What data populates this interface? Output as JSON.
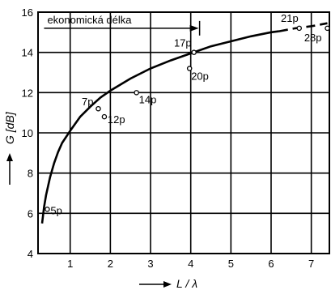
{
  "chart_data": {
    "type": "line",
    "xlabel": "L / λ",
    "ylabel": "G [dB]",
    "xlim": [
      0.2,
      7.45
    ],
    "ylim": [
      4,
      16
    ],
    "x_ticks": [
      1,
      2,
      3,
      4,
      5,
      6,
      7
    ],
    "y_ticks": [
      4,
      6,
      8,
      10,
      12,
      14,
      16
    ],
    "grid": true,
    "series": [
      {
        "style": "solid",
        "points": [
          [
            0.3,
            5.5
          ],
          [
            0.35,
            6.3
          ],
          [
            0.4,
            6.9
          ],
          [
            0.5,
            7.8
          ],
          [
            0.6,
            8.5
          ],
          [
            0.7,
            9.05
          ],
          [
            0.8,
            9.5
          ],
          [
            1.0,
            10.1
          ],
          [
            1.25,
            10.8
          ],
          [
            1.5,
            11.3
          ],
          [
            1.75,
            11.75
          ],
          [
            2.0,
            12.1
          ],
          [
            2.5,
            12.7
          ],
          [
            3.0,
            13.2
          ],
          [
            3.5,
            13.6
          ],
          [
            4.0,
            13.95
          ],
          [
            4.5,
            14.3
          ],
          [
            5.0,
            14.55
          ],
          [
            5.5,
            14.8
          ],
          [
            6.0,
            15.0
          ],
          [
            6.2,
            15.05
          ]
        ]
      },
      {
        "style": "dashed",
        "points": [
          [
            6.2,
            15.05
          ],
          [
            6.6,
            15.2
          ],
          [
            7.0,
            15.3
          ],
          [
            7.4,
            15.45
          ]
        ]
      }
    ],
    "markers": [
      {
        "label": "5p",
        "x": 0.43,
        "y": 6.2
      },
      {
        "label": "7p",
        "x": 1.7,
        "y": 11.2
      },
      {
        "label": "12p",
        "x": 1.85,
        "y": 10.8
      },
      {
        "label": "14p",
        "x": 2.65,
        "y": 12.0
      },
      {
        "label": "17p",
        "x": 4.08,
        "y": 14.0
      },
      {
        "label": "20p",
        "x": 3.97,
        "y": 13.2
      },
      {
        "label": "21p",
        "x": 6.7,
        "y": 15.2
      },
      {
        "label": "28p",
        "x": 7.4,
        "y": 15.2
      }
    ],
    "annotation": {
      "text": "ekonomická délka",
      "arrow_x": [
        0.35,
        4.2
      ],
      "arrow_y": 15.2
    }
  }
}
